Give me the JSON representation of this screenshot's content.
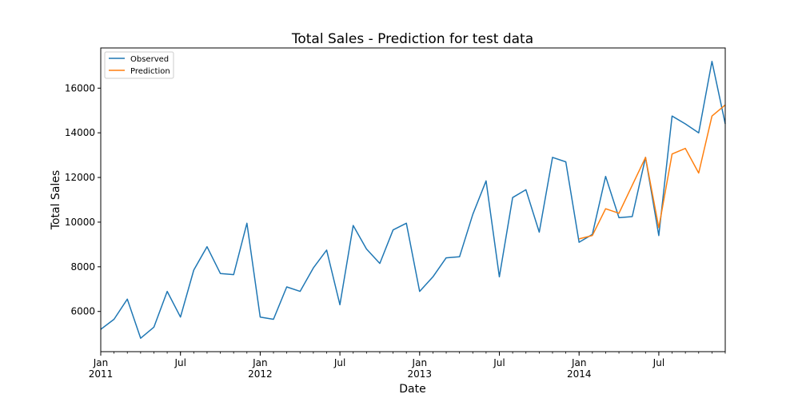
{
  "chart_data": {
    "type": "line",
    "title": "Total Sales - Prediction for test data",
    "xlabel": "Date",
    "ylabel": "Total Sales",
    "ylim": [
      4200,
      17800
    ],
    "xlim": [
      "2011-01",
      "2014-12"
    ],
    "yticks": [
      6000,
      8000,
      10000,
      12000,
      14000,
      16000
    ],
    "ytick_labels": [
      "6000",
      "8000",
      "10000",
      "12000",
      "14000",
      "16000"
    ],
    "xticks": [
      {
        "month": "2011-01",
        "label": "Jan",
        "sublabel": "2011"
      },
      {
        "month": "2011-07",
        "label": "Jul",
        "sublabel": ""
      },
      {
        "month": "2012-01",
        "label": "Jan",
        "sublabel": "2012"
      },
      {
        "month": "2012-07",
        "label": "Jul",
        "sublabel": ""
      },
      {
        "month": "2013-01",
        "label": "Jan",
        "sublabel": "2013"
      },
      {
        "month": "2013-07",
        "label": "Jul",
        "sublabel": ""
      },
      {
        "month": "2014-01",
        "label": "Jan",
        "sublabel": "2014"
      },
      {
        "month": "2014-07",
        "label": "Jul",
        "sublabel": ""
      }
    ],
    "grid": false,
    "legend": "top-left",
    "series": [
      {
        "name": "Observed",
        "color": "#1f77b4",
        "x": [
          "2011-01",
          "2011-02",
          "2011-03",
          "2011-04",
          "2011-05",
          "2011-06",
          "2011-07",
          "2011-08",
          "2011-09",
          "2011-10",
          "2011-11",
          "2011-12",
          "2012-01",
          "2012-02",
          "2012-03",
          "2012-04",
          "2012-05",
          "2012-06",
          "2012-07",
          "2012-08",
          "2012-09",
          "2012-10",
          "2012-11",
          "2012-12",
          "2013-01",
          "2013-02",
          "2013-03",
          "2013-04",
          "2013-05",
          "2013-06",
          "2013-07",
          "2013-08",
          "2013-09",
          "2013-10",
          "2013-11",
          "2013-12",
          "2014-01",
          "2014-02",
          "2014-03",
          "2014-04",
          "2014-05",
          "2014-06",
          "2014-07",
          "2014-08",
          "2014-09",
          "2014-10",
          "2014-11",
          "2014-12"
        ],
        "values": [
          5200,
          5650,
          6550,
          4800,
          5300,
          6900,
          5750,
          7850,
          8900,
          7700,
          7650,
          9950,
          5750,
          5650,
          7100,
          6900,
          7950,
          8750,
          6300,
          9850,
          8800,
          8150,
          9650,
          9950,
          6900,
          7550,
          8400,
          8450,
          10350,
          11850,
          7550,
          11100,
          11450,
          9550,
          12900,
          12700,
          9100,
          9450,
          12050,
          10200,
          10250,
          12900,
          9400,
          14750,
          14400,
          14000,
          17200,
          14400
        ]
      },
      {
        "name": "Prediction",
        "color": "#ff7f0e",
        "x": [
          "2014-01",
          "2014-02",
          "2014-03",
          "2014-04",
          "2014-05",
          "2014-06",
          "2014-07",
          "2014-08",
          "2014-09",
          "2014-10",
          "2014-11",
          "2014-12"
        ],
        "values": [
          9250,
          9400,
          10600,
          10400,
          11650,
          12900,
          9750,
          13050,
          13300,
          12200,
          14750,
          15250
        ]
      }
    ]
  }
}
